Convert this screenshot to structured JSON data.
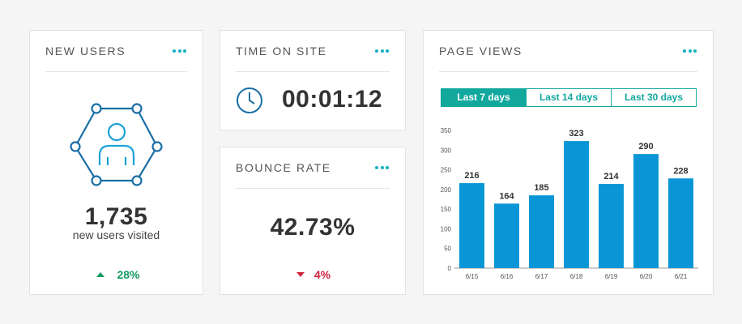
{
  "new_users": {
    "title": "NEW USERS",
    "value": "1,735",
    "caption": "new users visited",
    "change": "28%"
  },
  "time_on_site": {
    "title": "TIME ON SITE",
    "value": "00:01:12"
  },
  "bounce_rate": {
    "title": "BOUNCE RATE",
    "value": "42.73%",
    "change": "4%"
  },
  "page_views": {
    "title": "PAGE VIEWS",
    "tabs": [
      "Last 7 days",
      "Last 14 days",
      "Last 30 days"
    ]
  },
  "chart_data": {
    "type": "bar",
    "categories": [
      "6/15",
      "6/16",
      "6/17",
      "6/18",
      "6/19",
      "6/20",
      "6/21"
    ],
    "values": [
      216,
      164,
      185,
      323,
      214,
      290,
      228
    ],
    "color": "#0a96d6",
    "ylim": [
      0,
      350
    ],
    "yticks": [
      0,
      50,
      100,
      150,
      200,
      250,
      300,
      350
    ],
    "grid": false
  }
}
